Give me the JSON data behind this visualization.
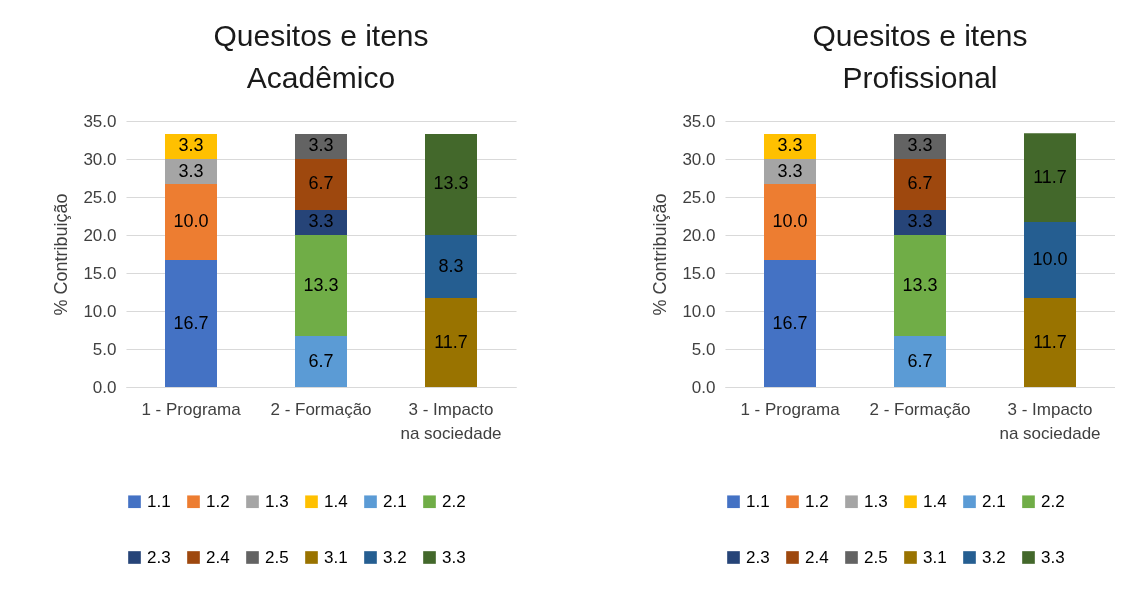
{
  "chart_data": [
    {
      "type": "bar",
      "stacked": true,
      "title": "Quesitos e itens Acadêmico",
      "ylabel": "% Contribuição",
      "categories": [
        "1 - Programa",
        "2 - Formação",
        "3 - Impacto na sociedade"
      ],
      "ylim": [
        0,
        35
      ],
      "yticks": [
        {
          "value": 0,
          "label": "0.0"
        },
        {
          "value": 5,
          "label": "5.0"
        },
        {
          "value": 10,
          "label": "10.0"
        },
        {
          "value": 15,
          "label": "15.0"
        },
        {
          "value": 20,
          "label": "20.0"
        },
        {
          "value": 25,
          "label": "25.0"
        },
        {
          "value": 30,
          "label": "30.0"
        },
        {
          "value": 35,
          "label": "35.0"
        }
      ],
      "grid": "y",
      "legend": "bottom",
      "series": [
        {
          "name": "1.1",
          "color": "#4472c4",
          "values": [
            16.7,
            null,
            null
          ],
          "value_labels": [
            "16.7",
            null,
            null
          ]
        },
        {
          "name": "1.2",
          "color": "#ed7d31",
          "values": [
            10.0,
            null,
            null
          ],
          "value_labels": [
            "10.0",
            null,
            null
          ]
        },
        {
          "name": "1.3",
          "color": "#a5a5a5",
          "values": [
            3.3,
            null,
            null
          ],
          "value_labels": [
            "3.3",
            null,
            null
          ]
        },
        {
          "name": "1.4",
          "color": "#ffc000",
          "values": [
            3.3,
            null,
            null
          ],
          "value_labels": [
            "3.3",
            null,
            null
          ]
        },
        {
          "name": "2.1",
          "color": "#5b9bd5",
          "values": [
            null,
            6.7,
            null
          ],
          "value_labels": [
            null,
            "6.7",
            null
          ]
        },
        {
          "name": "2.2",
          "color": "#70ad47",
          "values": [
            null,
            13.3,
            null
          ],
          "value_labels": [
            null,
            "13.3",
            null
          ]
        },
        {
          "name": "2.3",
          "color": "#264478",
          "values": [
            null,
            3.3,
            null
          ],
          "value_labels": [
            null,
            "3.3",
            null
          ]
        },
        {
          "name": "2.4",
          "color": "#9e480e",
          "values": [
            null,
            6.7,
            null
          ],
          "value_labels": [
            null,
            "6.7",
            null
          ]
        },
        {
          "name": "2.5",
          "color": "#636363",
          "values": [
            null,
            3.3,
            null
          ],
          "value_labels": [
            null,
            "3.3",
            null
          ]
        },
        {
          "name": "3.1",
          "color": "#997300",
          "values": [
            null,
            null,
            11.7
          ],
          "value_labels": [
            null,
            null,
            "11.7"
          ]
        },
        {
          "name": "3.2",
          "color": "#255e91",
          "values": [
            null,
            null,
            8.3
          ],
          "value_labels": [
            null,
            null,
            "8.3"
          ]
        },
        {
          "name": "3.3",
          "color": "#43682b",
          "values": [
            null,
            null,
            13.3
          ],
          "value_labels": [
            null,
            null,
            "13.3"
          ]
        }
      ]
    },
    {
      "type": "bar",
      "stacked": true,
      "title": "Quesitos e itens Profissional",
      "ylabel": "% Contribuição",
      "categories": [
        "1 - Programa",
        "2 - Formação",
        "3 - Impacto na sociedade"
      ],
      "ylim": [
        0,
        35
      ],
      "yticks": [
        {
          "value": 0,
          "label": "0.0"
        },
        {
          "value": 5,
          "label": "5.0"
        },
        {
          "value": 10,
          "label": "10.0"
        },
        {
          "value": 15,
          "label": "15.0"
        },
        {
          "value": 20,
          "label": "20.0"
        },
        {
          "value": 25,
          "label": "25.0"
        },
        {
          "value": 30,
          "label": "30.0"
        },
        {
          "value": 35,
          "label": "35.0"
        }
      ],
      "grid": "y",
      "legend": "bottom",
      "series": [
        {
          "name": "1.1",
          "color": "#4472c4",
          "values": [
            16.7,
            null,
            null
          ],
          "value_labels": [
            "16.7",
            null,
            null
          ]
        },
        {
          "name": "1.2",
          "color": "#ed7d31",
          "values": [
            10.0,
            null,
            null
          ],
          "value_labels": [
            "10.0",
            null,
            null
          ]
        },
        {
          "name": "1.3",
          "color": "#a5a5a5",
          "values": [
            3.3,
            null,
            null
          ],
          "value_labels": [
            "3.3",
            null,
            null
          ]
        },
        {
          "name": "1.4",
          "color": "#ffc000",
          "values": [
            3.3,
            null,
            null
          ],
          "value_labels": [
            "3.3",
            null,
            null
          ]
        },
        {
          "name": "2.1",
          "color": "#5b9bd5",
          "values": [
            null,
            6.7,
            null
          ],
          "value_labels": [
            null,
            "6.7",
            null
          ]
        },
        {
          "name": "2.2",
          "color": "#70ad47",
          "values": [
            null,
            13.3,
            null
          ],
          "value_labels": [
            null,
            "13.3",
            null
          ]
        },
        {
          "name": "2.3",
          "color": "#264478",
          "values": [
            null,
            3.3,
            null
          ],
          "value_labels": [
            null,
            "3.3",
            null
          ]
        },
        {
          "name": "2.4",
          "color": "#9e480e",
          "values": [
            null,
            6.7,
            null
          ],
          "value_labels": [
            null,
            "6.7",
            null
          ]
        },
        {
          "name": "2.5",
          "color": "#636363",
          "values": [
            null,
            3.3,
            null
          ],
          "value_labels": [
            null,
            "3.3",
            null
          ]
        },
        {
          "name": "3.1",
          "color": "#997300",
          "values": [
            null,
            null,
            11.7
          ],
          "value_labels": [
            null,
            null,
            "11.7"
          ]
        },
        {
          "name": "3.2",
          "color": "#255e91",
          "values": [
            null,
            null,
            10.0
          ],
          "value_labels": [
            null,
            null,
            "10.0"
          ]
        },
        {
          "name": "3.3",
          "color": "#43682b",
          "values": [
            null,
            null,
            11.7
          ],
          "value_labels": [
            null,
            null,
            "11.7"
          ]
        }
      ]
    }
  ]
}
